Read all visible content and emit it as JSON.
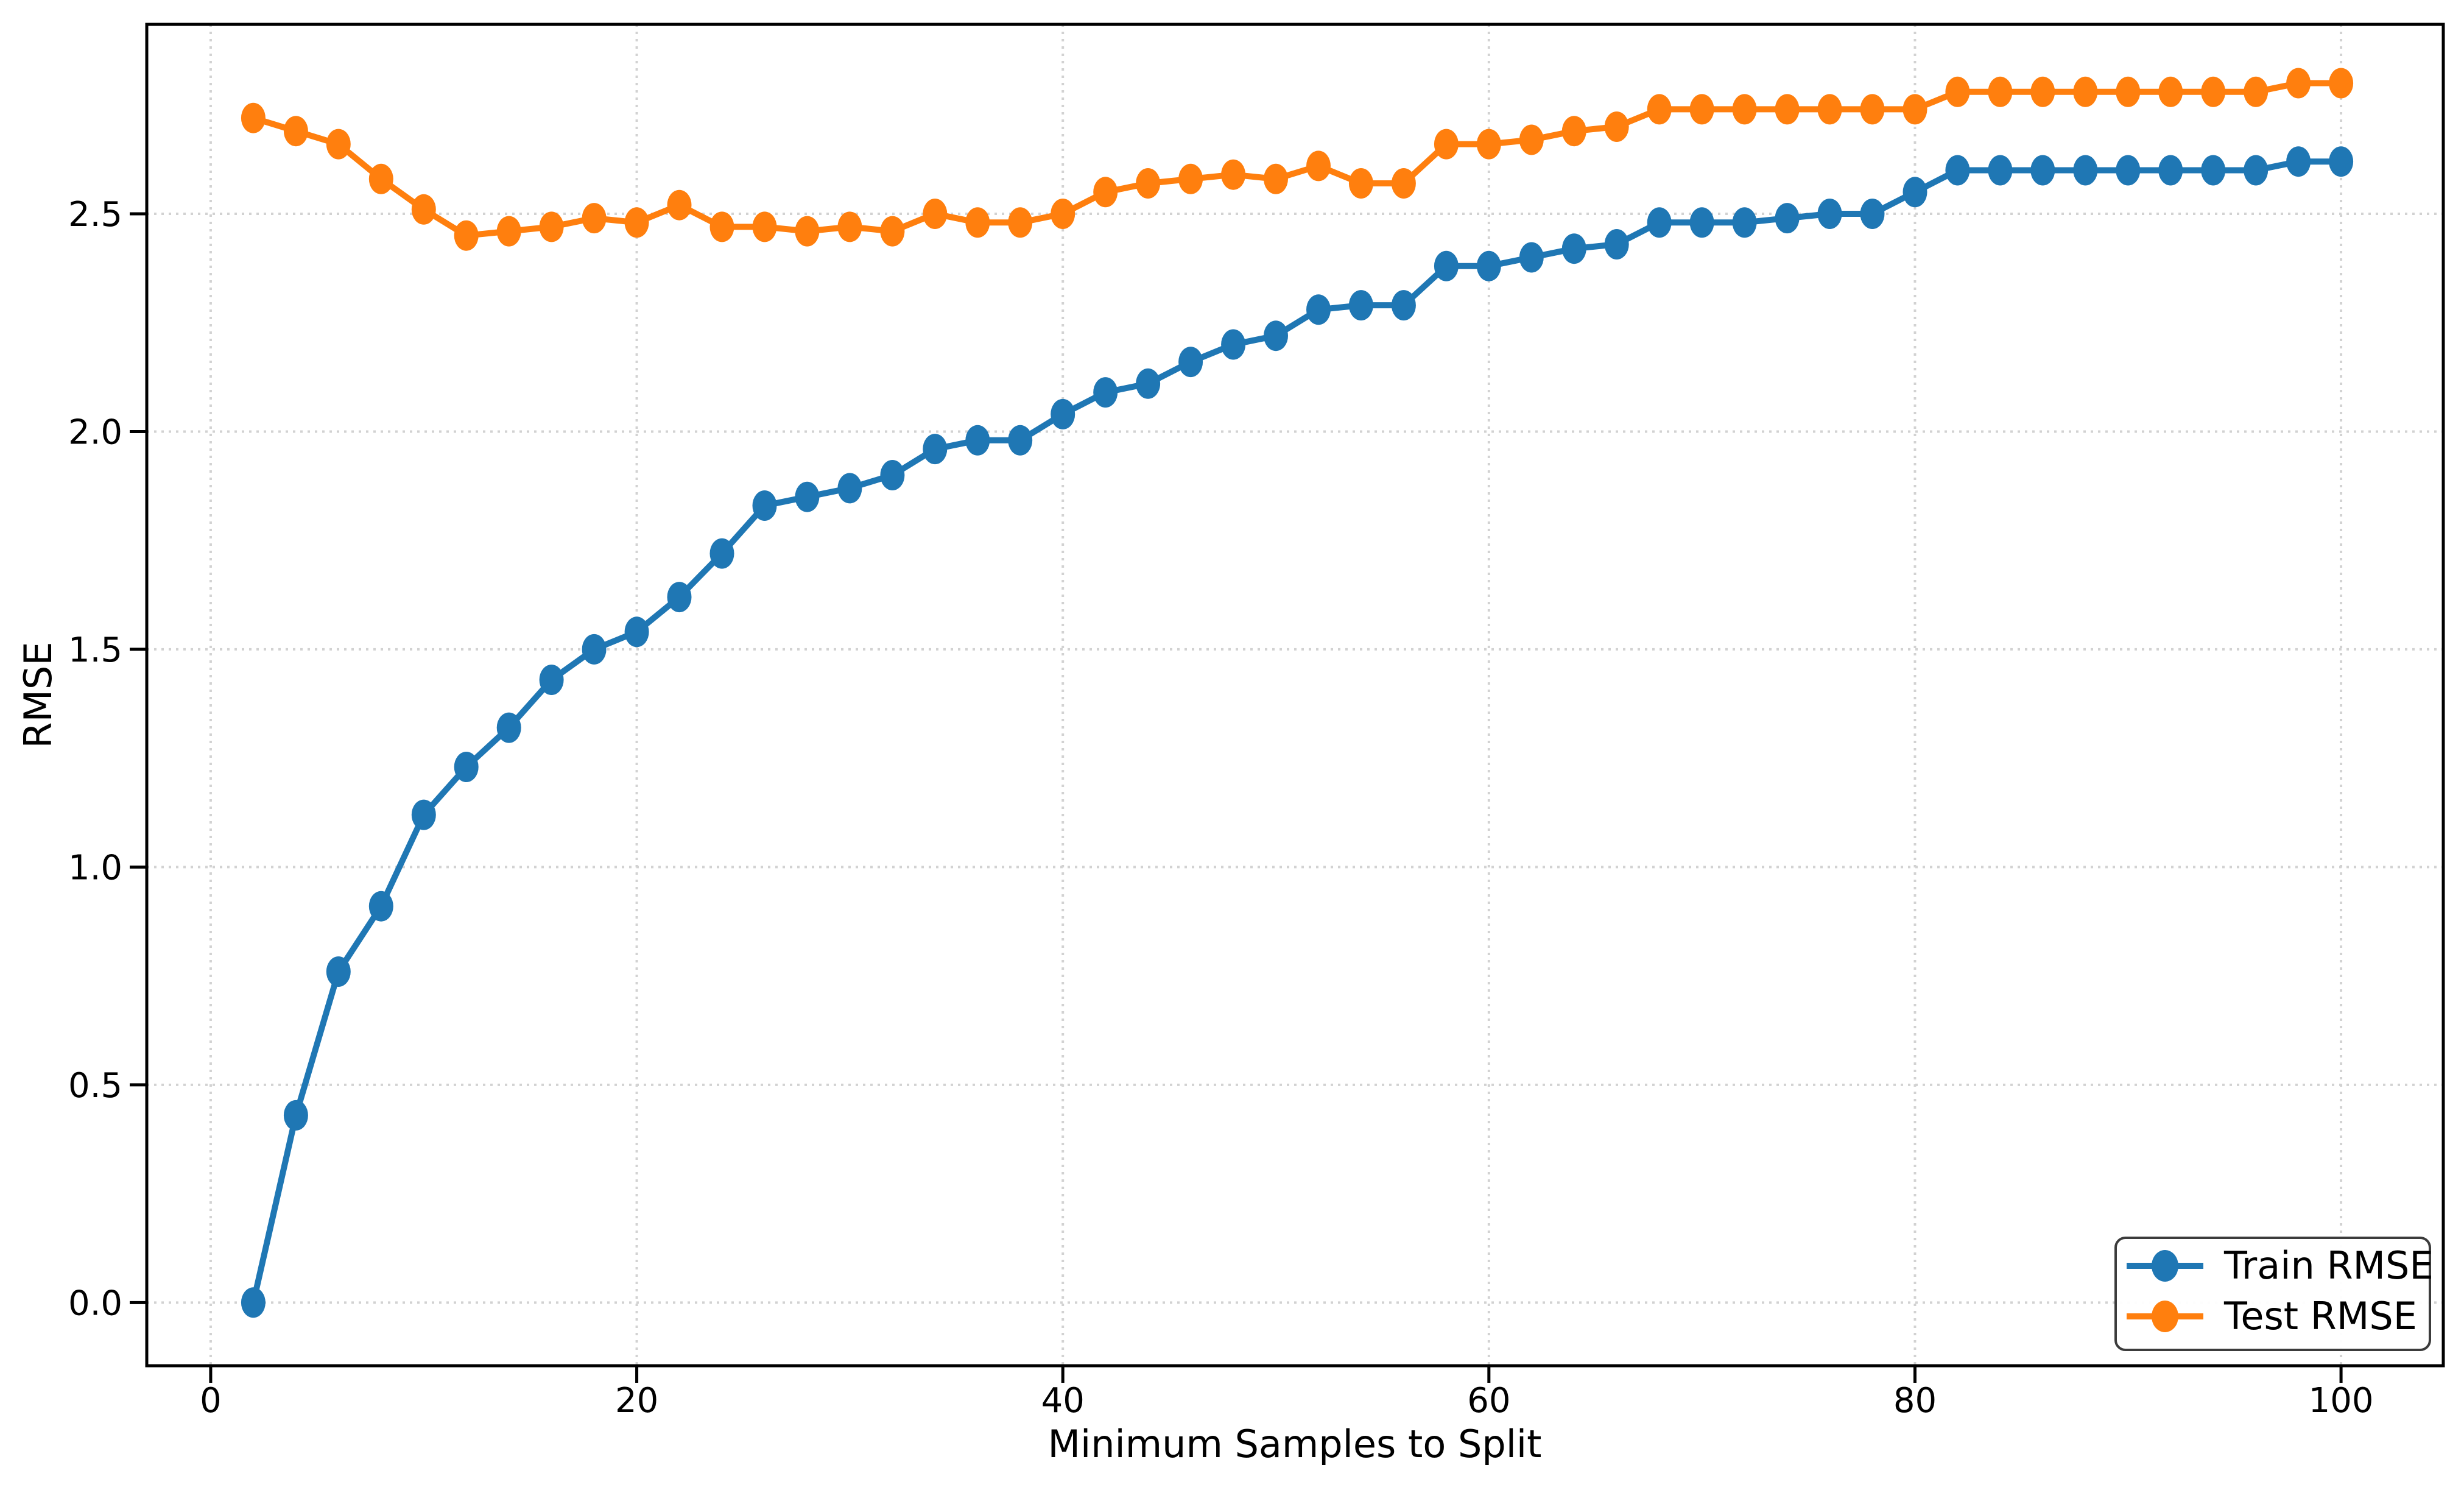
{
  "figure": {
    "background": "#ffffff",
    "spine_color": "#000000",
    "grid_color": "#d2d2d2"
  },
  "chart_data": {
    "type": "line",
    "title": "",
    "xlabel": "Minimum Samples to Split",
    "ylabel": "RMSE",
    "grid": "dotted",
    "legend_position": "lower right",
    "xlim": [
      -3.0,
      104.8
    ],
    "ylim": [
      -0.145,
      2.935
    ],
    "xticks": {
      "values": [
        0,
        20,
        40,
        60,
        80,
        100
      ],
      "labels": [
        "0",
        "20",
        "40",
        "60",
        "80",
        "100"
      ]
    },
    "yticks": {
      "values": [
        0.0,
        0.5,
        1.0,
        1.5,
        2.0,
        2.5
      ],
      "labels": [
        "0.0",
        "0.5",
        "1.0",
        "1.5",
        "2.0",
        "2.5"
      ]
    },
    "x": [
      2,
      4,
      6,
      8,
      10,
      12,
      14,
      16,
      18,
      20,
      22,
      24,
      26,
      28,
      30,
      32,
      34,
      36,
      38,
      40,
      42,
      44,
      46,
      48,
      50,
      52,
      54,
      56,
      58,
      60,
      62,
      64,
      66,
      68,
      70,
      72,
      74,
      76,
      78,
      80,
      82,
      84,
      86,
      88,
      90,
      92,
      94,
      96,
      98,
      100
    ],
    "series": [
      {
        "name": "Train RMSE",
        "color": "#1f77b4",
        "values": [
          0.0,
          0.43,
          0.76,
          0.91,
          1.12,
          1.23,
          1.32,
          1.43,
          1.5,
          1.54,
          1.62,
          1.72,
          1.83,
          1.85,
          1.87,
          1.9,
          1.96,
          1.98,
          1.98,
          2.04,
          2.09,
          2.11,
          2.16,
          2.2,
          2.22,
          2.28,
          2.29,
          2.29,
          2.38,
          2.38,
          2.4,
          2.42,
          2.43,
          2.48,
          2.48,
          2.48,
          2.49,
          2.5,
          2.5,
          2.55,
          2.6,
          2.6,
          2.6,
          2.6,
          2.6,
          2.6,
          2.6,
          2.6,
          2.62,
          2.62
        ]
      },
      {
        "name": "Test RMSE",
        "color": "#ff7f0e",
        "values": [
          2.72,
          2.69,
          2.66,
          2.58,
          2.51,
          2.45,
          2.46,
          2.47,
          2.49,
          2.48,
          2.52,
          2.47,
          2.47,
          2.46,
          2.47,
          2.46,
          2.5,
          2.48,
          2.48,
          2.5,
          2.55,
          2.57,
          2.58,
          2.59,
          2.58,
          2.61,
          2.57,
          2.57,
          2.66,
          2.66,
          2.67,
          2.69,
          2.7,
          2.74,
          2.74,
          2.74,
          2.74,
          2.74,
          2.74,
          2.74,
          2.78,
          2.78,
          2.78,
          2.78,
          2.78,
          2.78,
          2.78,
          2.78,
          2.8,
          2.8
        ]
      }
    ]
  }
}
